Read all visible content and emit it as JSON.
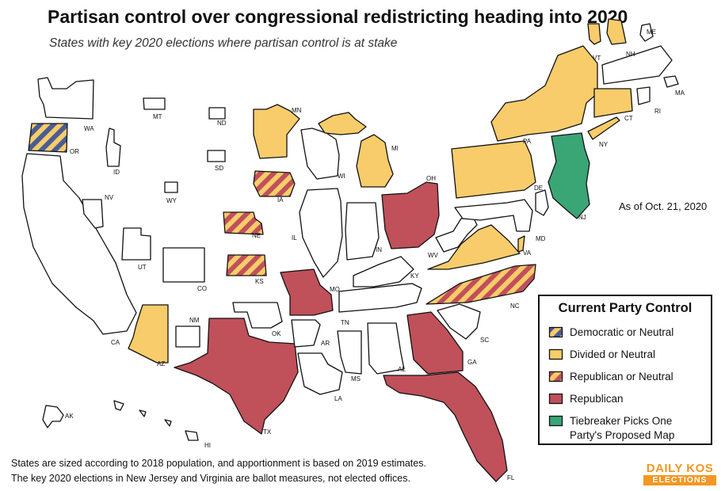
{
  "title": "Partisan control over congressional redistricting heading into 2020",
  "subtitle": "States with key 2020 elections where partisan control is at stake",
  "as_of": "As of Oct. 21, 2020",
  "footnote": {
    "line1": "States are sized according to 2018 population, and apportionment is based on 2019 estimates.",
    "line2": "The key 2020 elections in New Jersey and Virginia are ballot measures, not elected offices."
  },
  "colors": {
    "blue": "#4a5d93",
    "yellow": "#f8cc6a",
    "red": "#c0505a",
    "green": "#3aa575",
    "none": "#ffffff"
  },
  "legend": {
    "title": "Current Party Control",
    "items": [
      {
        "label": "Democratic or Neutral",
        "pattern": "stripe-blue"
      },
      {
        "label": "Divided or Neutral",
        "pattern": "solid-yellow"
      },
      {
        "label": "Republican or Neutral",
        "pattern": "stripe-red"
      },
      {
        "label": "Republican",
        "pattern": "solid-red"
      },
      {
        "label": "Tiebreaker Picks One Party's Proposed Map",
        "pattern": "solid-green"
      }
    ]
  },
  "states": {
    "WA": "WA",
    "OR": "OR",
    "CA": "CA",
    "AK": "AK",
    "HI": "HI",
    "ID": "ID",
    "NV": "NV",
    "MT": "MT",
    "WY": "WY",
    "UT": "UT",
    "AZ": "AZ",
    "NM": "NM",
    "CO": "CO",
    "ND": "ND",
    "SD": "SD",
    "NE": "NE",
    "KS": "KS",
    "OK": "OK",
    "TX": "TX",
    "MN": "MN",
    "IA": "IA",
    "MO": "MO",
    "AR": "AR",
    "LA": "LA",
    "WI": "WI",
    "IL": "IL",
    "MI": "MI",
    "IN": "IN",
    "OH": "OH",
    "KY": "KY",
    "TN": "TN",
    "MS": "MS",
    "AL": "AL",
    "GA": "GA",
    "FL": "FL",
    "SC": "SC",
    "NC": "NC",
    "VA": "VA",
    "WV": "WV",
    "MD": "MD",
    "DE": "DE",
    "PA": "PA",
    "NJ": "NJ",
    "NY": "NY",
    "CT": "CT",
    "RI": "RI",
    "MA": "MA",
    "VT": "VT",
    "NH": "NH",
    "ME": "ME"
  },
  "logo": {
    "top": "DAILY KOS",
    "bottom": "ELECTIONS"
  }
}
